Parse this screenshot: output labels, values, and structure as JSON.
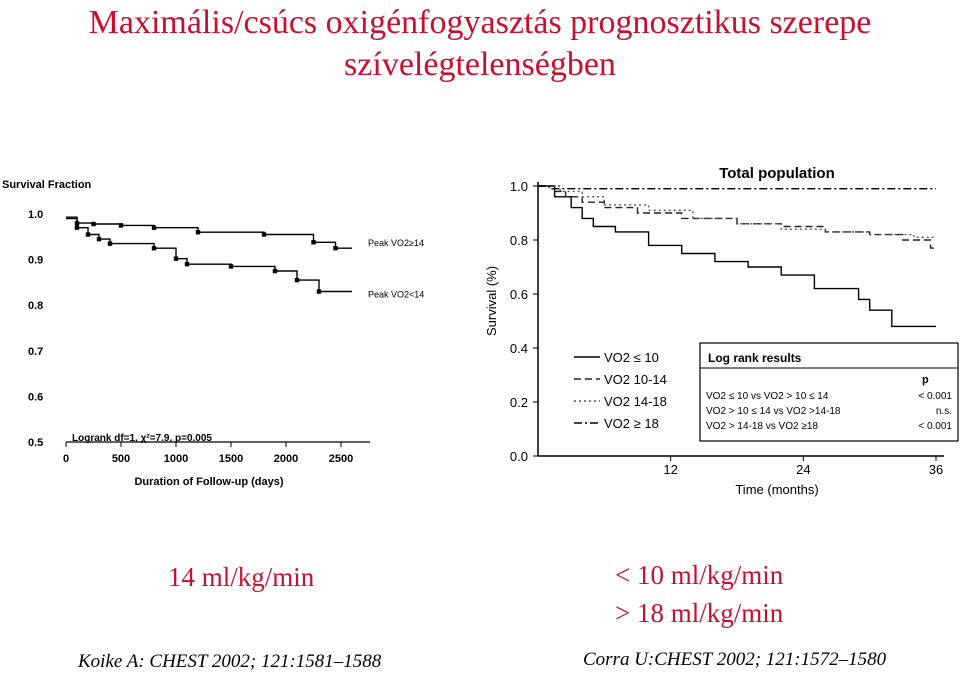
{
  "title": {
    "line1": "Maximális/csúcs oxigénfogyasztás prognosztikus szerepe",
    "line2": "szívelégtelenségben"
  },
  "captions": {
    "left": "14 ml/kg/min",
    "right1": "< 10 ml/kg/min",
    "right2": "> 18 ml/kg/min"
  },
  "citations": {
    "left": "Koike A: CHEST 2002; 121:1581–1588",
    "right": "Corra U:CHEST 2002; 121:1572–1580"
  },
  "chart_data": [
    {
      "type": "line",
      "step": true,
      "title": "",
      "ylabel": "Survival Fraction",
      "xlabel": "Duration of Follow-up (days)",
      "xlim": [
        0,
        2600
      ],
      "ylim": [
        0.5,
        1.0
      ],
      "xticks": [
        0,
        500,
        1000,
        1500,
        2000,
        2500
      ],
      "yticks": [
        0.5,
        0.6,
        0.7,
        0.8,
        0.9,
        1.0
      ],
      "ytick_labels": [
        "0.5",
        "0.6",
        "0.7",
        "0.8",
        "0.9",
        "1.0"
      ],
      "annotation": "Logrank  df=1,  χ²=7.9,  p=0.005",
      "series": [
        {
          "name": "Peak VO2≥14",
          "color": "#000000",
          "dash": "solid",
          "x": [
            0,
            100,
            250,
            500,
            800,
            1200,
            1800,
            2250,
            2450,
            2600
          ],
          "y": [
            0.993,
            0.98,
            0.978,
            0.975,
            0.97,
            0.96,
            0.955,
            0.938,
            0.925,
            0.925
          ]
        },
        {
          "name": "Peak VO2<14",
          "color": "#000000",
          "dash": "solid",
          "x": [
            0,
            100,
            200,
            300,
            400,
            800,
            1000,
            1100,
            1500,
            1900,
            2100,
            2300,
            2600
          ],
          "y": [
            0.99,
            0.97,
            0.955,
            0.945,
            0.935,
            0.925,
            0.902,
            0.89,
            0.885,
            0.875,
            0.855,
            0.83,
            0.83
          ]
        }
      ]
    },
    {
      "type": "line",
      "step": true,
      "title": "Total population",
      "ylabel": "Survival (%)",
      "xlabel": "Time (months)",
      "xlim": [
        0,
        36
      ],
      "ylim": [
        0.0,
        1.0
      ],
      "xticks": [
        12,
        24,
        36
      ],
      "yticks": [
        0.0,
        0.2,
        0.4,
        0.6,
        0.8,
        1.0
      ],
      "ytick_labels": [
        "0.0",
        "0.2",
        "0.4",
        "0.6",
        "0.8",
        "1.0"
      ],
      "legend": "bottom-left",
      "series": [
        {
          "name": "VO2 ≤ 10",
          "color": "#000000",
          "dash": "solid",
          "x": [
            0,
            1.5,
            3,
            4,
            5,
            7,
            10,
            13,
            16,
            19,
            22,
            25,
            29,
            30,
            32,
            36
          ],
          "y": [
            1.0,
            0.96,
            0.92,
            0.88,
            0.85,
            0.83,
            0.78,
            0.75,
            0.72,
            0.7,
            0.67,
            0.62,
            0.58,
            0.54,
            0.48,
            0.48
          ]
        },
        {
          "name": "VO2 10-14",
          "color": "#222222",
          "dash": "dashed",
          "x": [
            0,
            1.5,
            2.5,
            4,
            6,
            9,
            13,
            18,
            22,
            26,
            30,
            33,
            35.5,
            36
          ],
          "y": [
            1.0,
            0.98,
            0.96,
            0.94,
            0.92,
            0.9,
            0.88,
            0.86,
            0.85,
            0.83,
            0.82,
            0.8,
            0.77,
            0.77
          ]
        },
        {
          "name": "VO2 14-18",
          "color": "#555555",
          "dash": "dotted",
          "x": [
            0,
            2,
            4,
            6,
            10,
            14,
            18,
            22,
            26,
            30,
            34,
            36
          ],
          "y": [
            1.0,
            0.98,
            0.96,
            0.93,
            0.91,
            0.88,
            0.86,
            0.84,
            0.83,
            0.82,
            0.81,
            0.81
          ]
        },
        {
          "name": "VO2 ≥ 18",
          "color": "#000000",
          "dash": "dashdot",
          "x": [
            0,
            1,
            36
          ],
          "y": [
            1.0,
            0.99,
            0.99
          ]
        }
      ],
      "log_rank": {
        "title": "Log rank results",
        "p_header": "p",
        "rows": [
          {
            "label": "VO2 ≤ 10 vs VO2 > 10 ≤ 14",
            "p": "< 0.001"
          },
          {
            "label": "VO2 > 10 ≤ 14 vs VO2 >14-18",
            "p": "n.s."
          },
          {
            "label": "VO2 > 14-18 vs VO2 ≥18",
            "p": "< 0.001"
          }
        ]
      }
    }
  ]
}
